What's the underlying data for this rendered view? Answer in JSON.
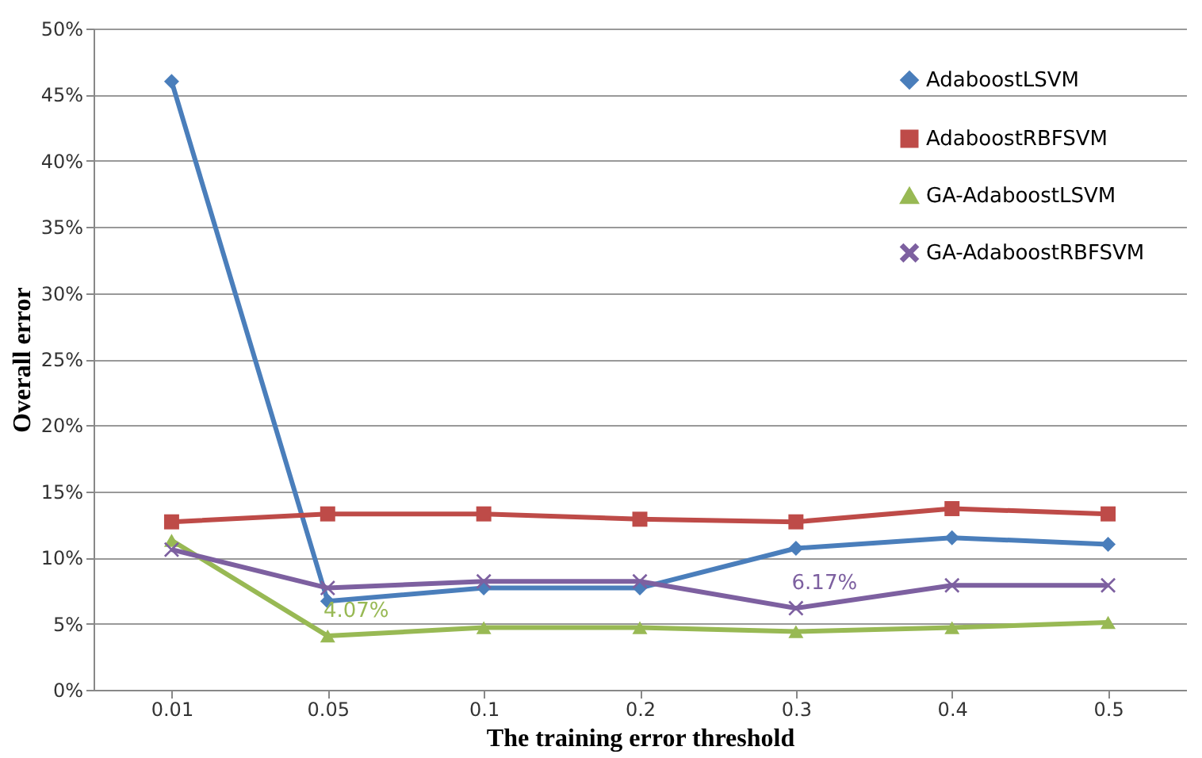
{
  "chart_data": {
    "type": "line",
    "xlabel": "The training  error threshold",
    "ylabel": "Overall  error",
    "categories": [
      "0.01",
      "0.05",
      "0.1",
      "0.2",
      "0.3",
      "0.4",
      "0.5"
    ],
    "series": [
      {
        "name": "AdaboostLSVM",
        "color": "#4a7ebb",
        "marker": "diamond",
        "values": [
          46,
          6.7,
          7.7,
          7.7,
          10.7,
          11.5,
          11.0
        ]
      },
      {
        "name": "AdaboostRBFSVM",
        "color": "#be4b48",
        "marker": "square",
        "values": [
          12.7,
          13.3,
          13.3,
          12.9,
          12.7,
          13.7,
          13.3
        ]
      },
      {
        "name": "GA-AdaboostLSVM",
        "color": "#98b954",
        "marker": "triangle",
        "values": [
          11.3,
          4.07,
          4.7,
          4.7,
          4.4,
          4.7,
          5.1
        ]
      },
      {
        "name": "GA-AdaboostRBFSVM",
        "color": "#7d60a0",
        "marker": "cross",
        "values": [
          10.6,
          7.7,
          8.2,
          8.2,
          6.17,
          7.9,
          7.9
        ]
      }
    ],
    "ylim": [
      0,
      50
    ],
    "yticks": [
      {
        "value": 0,
        "label": "0%"
      },
      {
        "value": 5,
        "label": "5%"
      },
      {
        "value": 10,
        "label": "10%"
      },
      {
        "value": 15,
        "label": "15%"
      },
      {
        "value": 20,
        "label": "20%"
      },
      {
        "value": 25,
        "label": "25%"
      },
      {
        "value": 30,
        "label": "30%"
      },
      {
        "value": 35,
        "label": "35%"
      },
      {
        "value": 40,
        "label": "40%"
      },
      {
        "value": 45,
        "label": "45%"
      },
      {
        "value": 50,
        "label": "50%"
      }
    ],
    "annotations": [
      {
        "text": "4.07%",
        "x": "0.05",
        "y": 4.07
      },
      {
        "text": "6.17%",
        "x": "0.3",
        "y": 6.17
      }
    ],
    "grid": "y",
    "legend": "top right",
    "line_style": "solid"
  }
}
